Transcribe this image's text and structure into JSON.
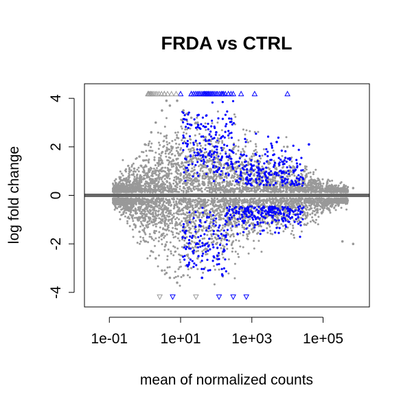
{
  "chart_data": {
    "type": "scatter",
    "title": "FRDA vs CTRL",
    "xlabel": "mean of normalized counts",
    "ylabel": "log fold change",
    "x_scale": "log10",
    "xlim": [
      0.02,
      2000000
    ],
    "ylim": [
      -4.6,
      4.6
    ],
    "x_ticks": [
      0.1,
      10,
      1000,
      100000
    ],
    "x_tick_labels": [
      "1e-01",
      "1e+01",
      "1e+03",
      "1e+05"
    ],
    "y_ticks": [
      -4,
      -2,
      0,
      2,
      4
    ],
    "y_tick_labels": [
      "-4",
      "-2",
      "0",
      "2",
      "4"
    ],
    "reference_line": {
      "y": 0,
      "color": "#666666"
    },
    "grid": false,
    "legend": "none",
    "colors": {
      "not_significant": "#999999",
      "significant": "#0000ff"
    },
    "series": [
      {
        "points_estimated": [
          [
            0.18,
            -0.1
          ],
          [
            0.18,
            0.3
          ],
          [
            0.3,
            -0.6
          ],
          [
            0.3,
            0.7
          ],
          [
            0.5,
            -1.2
          ],
          [
            0.5,
            1.1
          ],
          [
            0.7,
            1.6
          ],
          [
            0.7,
            -1.5
          ],
          [
            1,
            2.1
          ],
          [
            1,
            -1.9
          ],
          [
            1.5,
            2.6
          ],
          [
            1.5,
            -2.3
          ],
          [
            2,
            3
          ],
          [
            2,
            -2.6
          ],
          [
            3,
            3.5
          ],
          [
            3,
            -3.1
          ],
          [
            4,
            3.9
          ],
          [
            4,
            -3.2
          ],
          [
            5,
            3.7
          ],
          [
            5,
            -3.4
          ],
          [
            8,
            3.9
          ],
          [
            8,
            -3.6
          ],
          [
            12,
            3.5
          ],
          [
            12,
            -3.3
          ],
          [
            20,
            3.2
          ],
          [
            20,
            -3.0
          ],
          [
            30,
            3.0
          ],
          [
            30,
            -2.6
          ],
          [
            50,
            2.4
          ],
          [
            50,
            -2.2
          ],
          [
            100,
            2.2
          ],
          [
            100,
            -2.0
          ],
          [
            300,
            1.9
          ],
          [
            300,
            -1.6
          ],
          [
            1000,
            1.6
          ],
          [
            1000,
            -1.4
          ],
          [
            3000,
            1.3
          ],
          [
            3000,
            -1.2
          ],
          [
            10000,
            2.0
          ],
          [
            10000,
            -1.0
          ],
          [
            30000,
            1.0
          ],
          [
            30000,
            -1.2
          ],
          [
            60000,
            0.5
          ],
          [
            60000,
            -0.8
          ],
          [
            150000,
            0.4
          ],
          [
            150000,
            -0.6
          ],
          [
            300000,
            -0.3
          ],
          [
            350000,
            -1.9
          ],
          [
            700000,
            -2.0
          ],
          [
            700000,
            0.3
          ],
          [
            3.5,
            4.2
          ],
          [
            2.6,
            -4.2
          ],
          [
            27,
            -4.2
          ]
        ]
      },
      {
        "points_estimated": [
          [
            20,
            2.9
          ],
          [
            30,
            3.3
          ],
          [
            40,
            -3.4
          ],
          [
            60,
            -2.1
          ],
          [
            100,
            2.6
          ],
          [
            150,
            -3.3
          ],
          [
            200,
            1.6
          ],
          [
            300,
            1.1
          ],
          [
            400,
            -1.6
          ],
          [
            700,
            0.7
          ],
          [
            1000,
            -0.8
          ],
          [
            1500,
            -0.7
          ],
          [
            2000,
            0.6
          ],
          [
            4000,
            -0.7
          ],
          [
            5000,
            2.2
          ],
          [
            8000,
            -0.8
          ],
          [
            12000,
            1.5
          ],
          [
            20000,
            -0.9
          ],
          [
            40000,
            2.1
          ],
          [
            6,
            -4.3
          ],
          [
            120,
            -4.3
          ],
          [
            300,
            -4.3
          ],
          [
            700,
            -4.3
          ],
          [
            10,
            4.2
          ],
          [
            20,
            4.2
          ],
          [
            60,
            4.2
          ],
          [
            150,
            4.2
          ],
          [
            500,
            4.2
          ],
          [
            1200,
            4.2
          ],
          [
            10000,
            4.2
          ]
        ]
      }
    ]
  }
}
